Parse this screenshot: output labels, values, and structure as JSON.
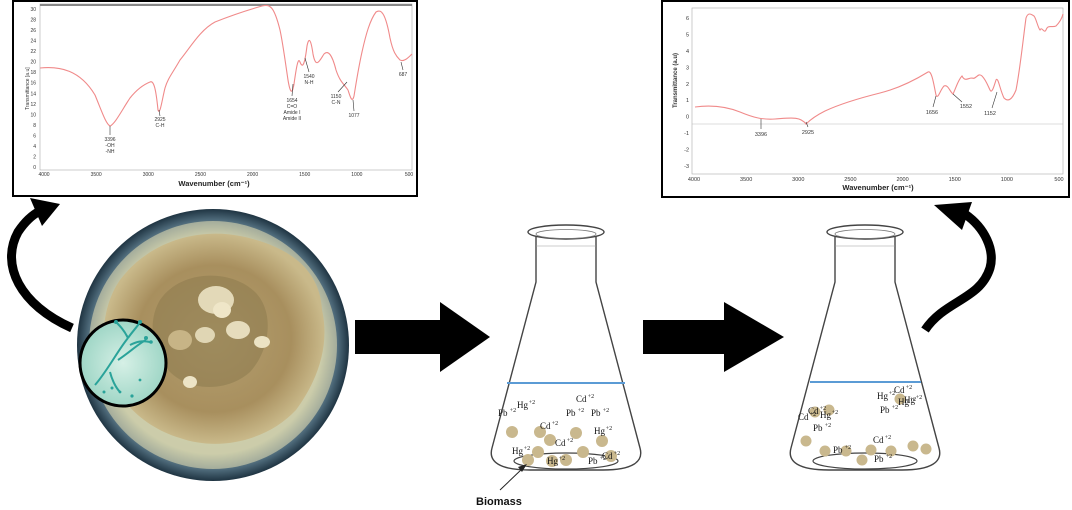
{
  "left_spectrum": {
    "xlabel": "Wavenumber (cm⁻¹)",
    "ylabel": "Transmittance [a.u]",
    "x_ticks": [
      "4000",
      "3500",
      "3000",
      "2500",
      "2000",
      "1500",
      "1000",
      "500"
    ],
    "y_ticks": [
      "30",
      "28",
      "26",
      "24",
      "22",
      "20",
      "18",
      "16",
      "14",
      "12",
      "10",
      "8",
      "6",
      "4",
      "2",
      "0"
    ],
    "peaks": [
      {
        "label": "3396",
        "sub1": "-OH",
        "sub2": "-NH"
      },
      {
        "label": "2925",
        "sub1": "C-H",
        "sub2": ""
      },
      {
        "label": "1654",
        "sub1": "C=O",
        "sub2": "Amide I",
        "sub3": "Amide II"
      },
      {
        "label": "1540",
        "sub1": "N-H",
        "sub2": ""
      },
      {
        "label": "1150",
        "sub1": "C-N",
        "sub2": ""
      },
      {
        "label": "1077",
        "sub1": "",
        "sub2": ""
      },
      {
        "label": "687",
        "sub1": "",
        "sub2": ""
      }
    ]
  },
  "right_spectrum": {
    "xlabel": "Wavenumber (cm⁻¹)",
    "ylabel": "Transmittance (a.u)",
    "x_ticks": [
      "4000",
      "3500",
      "3000",
      "2500",
      "2000",
      "1500",
      "1000",
      "500"
    ],
    "y_ticks": [
      "6",
      "5",
      "4",
      "3",
      "2",
      "1",
      "0",
      "-1",
      "-2",
      "-3"
    ],
    "peaks": [
      "3396",
      "2925",
      "1656",
      "1552",
      "1152"
    ]
  },
  "flask1": {
    "ions": [
      {
        "sym": "Hg",
        "sup": "+2"
      },
      {
        "sym": "Cd",
        "sup": "+2"
      },
      {
        "sym": "Pb",
        "sup": "+2"
      },
      {
        "sym": "Cd",
        "sup": "+2"
      },
      {
        "sym": "Pb",
        "sup": "+2"
      },
      {
        "sym": "Pb",
        "sup": "+2"
      },
      {
        "sym": "Cd",
        "sup": "+2"
      },
      {
        "sym": "Hg",
        "sup": "+2"
      },
      {
        "sym": "Hg",
        "sup": "+2"
      },
      {
        "sym": "Hg",
        "sup": "+2"
      },
      {
        "sym": "Pb",
        "sup": "+2"
      },
      {
        "sym": "Cd",
        "sup": "+2"
      }
    ],
    "biomass_label": "Biomass"
  },
  "flask2": {
    "ions": [
      {
        "sym": "Hg",
        "sup": "+2"
      },
      {
        "sym": "Cd",
        "sup": "+2"
      },
      {
        "sym": "Cd",
        "sup": "+2"
      },
      {
        "sym": "Hg",
        "sup": "+2"
      },
      {
        "sym": "Pb",
        "sup": "+2"
      },
      {
        "sym": "Hg",
        "sup": "+2"
      },
      {
        "sym": "Cd",
        "sup": "+2"
      },
      {
        "sym": "Hg",
        "sup": "+2"
      },
      {
        "sym": "Pb",
        "sup": "+2"
      },
      {
        "sym": "Pb",
        "sup": "+2"
      },
      {
        "sym": "Cd",
        "sup": "+2"
      },
      {
        "sym": "Pb",
        "sup": "+2"
      }
    ]
  },
  "colors": {
    "spectrum_line": "#f08a8a",
    "water_line": "#5b9bd5",
    "biomass_bead": "#c9b88e",
    "arrow": "#000000"
  }
}
